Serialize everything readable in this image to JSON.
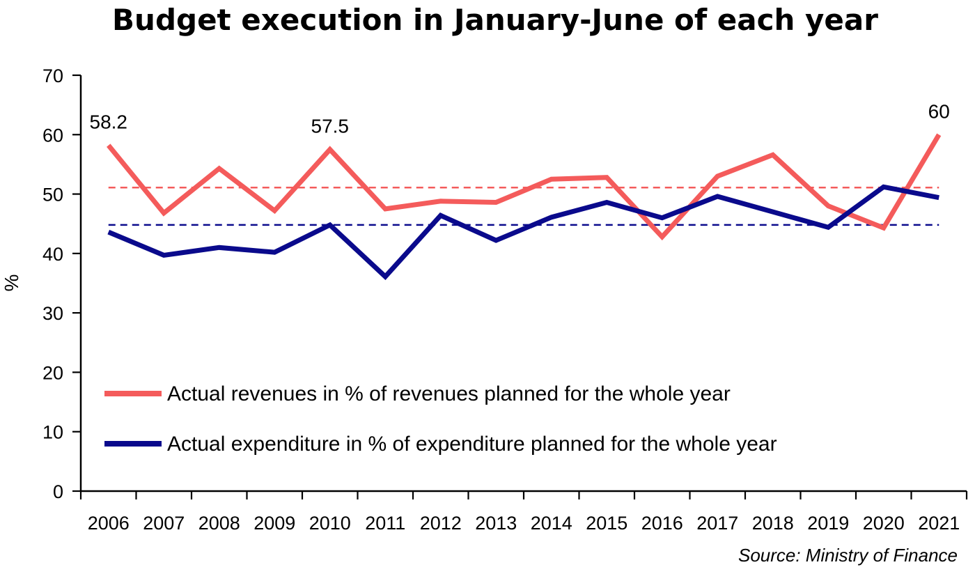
{
  "colors": {
    "revenue": "#f45b5b",
    "expenditure": "#0a0a8c",
    "revenue_avg": "#f45b5b",
    "expenditure_avg": "#0a0a8c",
    "axis": "#000000",
    "text": "#000000"
  },
  "source": "Source: Ministry of Finance",
  "chart_data": {
    "type": "line",
    "title": "Budget execution in January-June of each year",
    "xlabel": "",
    "ylabel": "%",
    "ylim": [
      0,
      70
    ],
    "yticks": [
      0,
      10,
      20,
      30,
      40,
      50,
      60,
      70
    ],
    "grid": false,
    "legend_position": "bottom-left inside plot",
    "categories": [
      "2006",
      "2007",
      "2008",
      "2009",
      "2010",
      "2011",
      "2012",
      "2013",
      "2014",
      "2015",
      "2016",
      "2017",
      "2018",
      "2019",
      "2020",
      "2021"
    ],
    "series": [
      {
        "name": "Actual revenues in % of revenues planned for the whole year",
        "key": "revenue",
        "values": [
          58.2,
          46.8,
          54.3,
          47.2,
          57.5,
          47.5,
          48.8,
          48.6,
          52.5,
          52.8,
          42.8,
          53.0,
          56.6,
          48.0,
          44.3,
          60.0
        ],
        "average": 51.1
      },
      {
        "name": "Actual expenditure in % of expenditure planned for the whole year",
        "key": "expenditure",
        "values": [
          43.6,
          39.7,
          41.0,
          40.2,
          44.8,
          36.1,
          46.4,
          42.2,
          46.1,
          48.6,
          46.0,
          49.6,
          47.0,
          44.4,
          51.2,
          49.4
        ],
        "average": 44.8
      }
    ],
    "data_labels": [
      {
        "series": "revenue",
        "index": 0,
        "text": "58.2"
      },
      {
        "series": "revenue",
        "index": 4,
        "text": "57.5"
      },
      {
        "series": "revenue",
        "index": 15,
        "text": "60"
      }
    ]
  }
}
